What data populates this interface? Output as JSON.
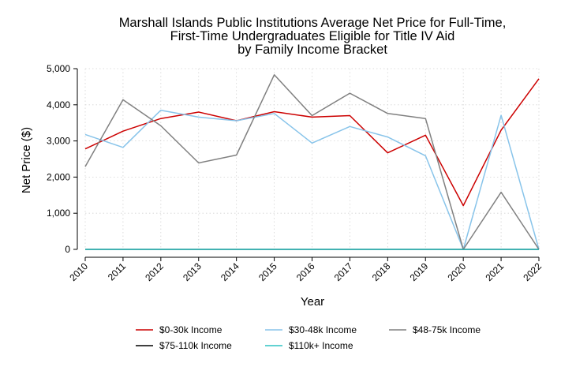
{
  "chart_data": {
    "type": "line",
    "title_lines": [
      "Marshall Islands Public Institutions Average Net Price for Full-Time,",
      "First-Time Undergraduates Eligible for Title IV Aid",
      "by Family Income Bracket"
    ],
    "xlabel": "Year",
    "ylabel": "Net Price ($)",
    "x": [
      "2010",
      "2011",
      "2012",
      "2013",
      "2014",
      "2015",
      "2016",
      "2017",
      "2018",
      "2019",
      "2020",
      "2021",
      "2022"
    ],
    "ylim": [
      0,
      5000
    ],
    "yticks": [
      0,
      1000,
      2000,
      3000,
      4000,
      5000
    ],
    "ytick_labels": [
      "0",
      "1,000",
      "2,000",
      "3,000",
      "4,000",
      "5,000"
    ],
    "grid": true,
    "legend_position": "bottom",
    "series": [
      {
        "name": "$0-30k Income",
        "color": "#cc0000",
        "values": [
          2780,
          3270,
          3620,
          3800,
          3560,
          3810,
          3660,
          3700,
          2670,
          3160,
          1210,
          3300,
          4720
        ]
      },
      {
        "name": "$30-48k Income",
        "color": "#88c4ea",
        "values": [
          3180,
          2820,
          3850,
          3660,
          3560,
          3760,
          2940,
          3400,
          3110,
          2590,
          0,
          3710,
          0
        ]
      },
      {
        "name": "$48-75k Income",
        "color": "#808080",
        "values": [
          2290,
          4140,
          3420,
          2390,
          2610,
          4830,
          3700,
          4320,
          3760,
          3620,
          0,
          1580,
          0
        ]
      },
      {
        "name": "$75-110k Income",
        "color": "#000000",
        "values": [
          0,
          0,
          0,
          0,
          0,
          0,
          0,
          0,
          0,
          0,
          0,
          0,
          0
        ]
      },
      {
        "name": "$110k+ Income",
        "color": "#2ec4c4",
        "values": [
          0,
          0,
          0,
          0,
          0,
          0,
          0,
          0,
          0,
          0,
          0,
          0,
          0
        ]
      }
    ]
  }
}
